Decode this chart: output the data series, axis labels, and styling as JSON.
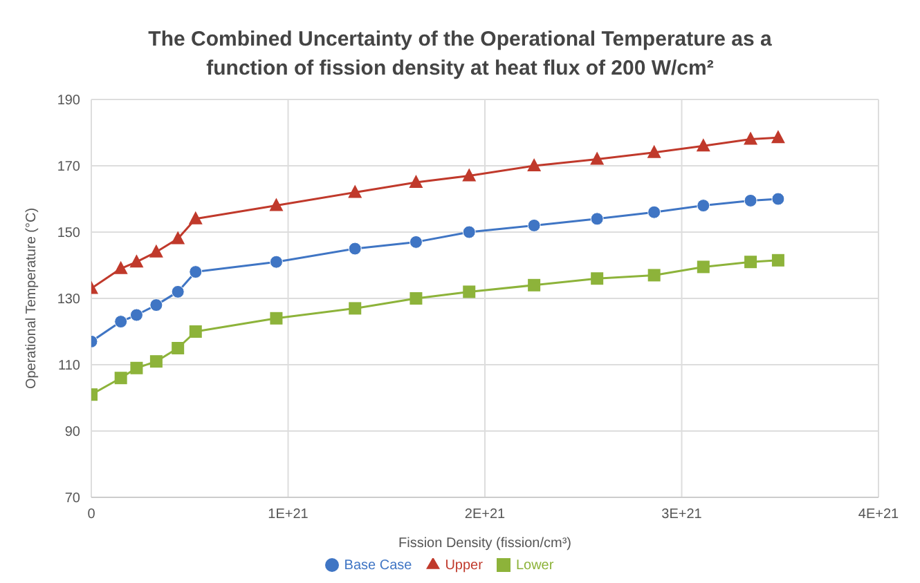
{
  "chart_data": {
    "type": "line",
    "title": "The Combined Uncertainty of the Operational Temperature as a function of fission density at heat flux of 200 W/cm²",
    "xlabel": "Fission Density (fission/cm³)",
    "ylabel": "Operational Temperature (°C)",
    "x": [
      0,
      1.5e+20,
      2.3e+20,
      3.3e+20,
      4.4e+20,
      5.3e+20,
      9.4e+20,
      1.34e+21,
      1.65e+21,
      1.92e+21,
      2.25e+21,
      2.57e+21,
      2.86e+21,
      3.11e+21,
      3.35e+21,
      3.49e+21
    ],
    "series": [
      {
        "name": "Base Case",
        "color": "#3f75c4",
        "marker": "circle",
        "values": [
          117,
          123,
          125,
          128,
          132,
          138,
          141,
          145,
          147,
          150,
          152,
          154,
          156,
          158,
          159.5,
          160
        ]
      },
      {
        "name": "Upper",
        "color": "#c0392b",
        "marker": "triangle",
        "values": [
          133,
          139,
          141,
          144,
          148,
          154,
          158,
          162,
          165,
          167,
          170,
          172,
          174,
          176,
          178,
          178.5
        ]
      },
      {
        "name": "Lower",
        "color": "#8db33a",
        "marker": "square",
        "values": [
          101,
          106,
          109,
          111,
          115,
          120,
          124,
          127,
          130,
          132,
          134,
          136,
          137,
          139.5,
          141,
          141.5
        ]
      }
    ],
    "xlim": [
      0,
      4e+21
    ],
    "xticks": [
      0,
      {
        "value": 1e+21,
        "label": "1E+21"
      },
      {
        "value": 2e+21,
        "label": "2E+21"
      },
      {
        "value": 3e+21,
        "label": "3E+21"
      },
      {
        "value": 4e+21,
        "label": "4E+21"
      }
    ],
    "ylim": [
      70,
      190
    ],
    "yticks": [
      70,
      90,
      110,
      130,
      150,
      170,
      190
    ],
    "grid": true,
    "legend": "bottom"
  }
}
